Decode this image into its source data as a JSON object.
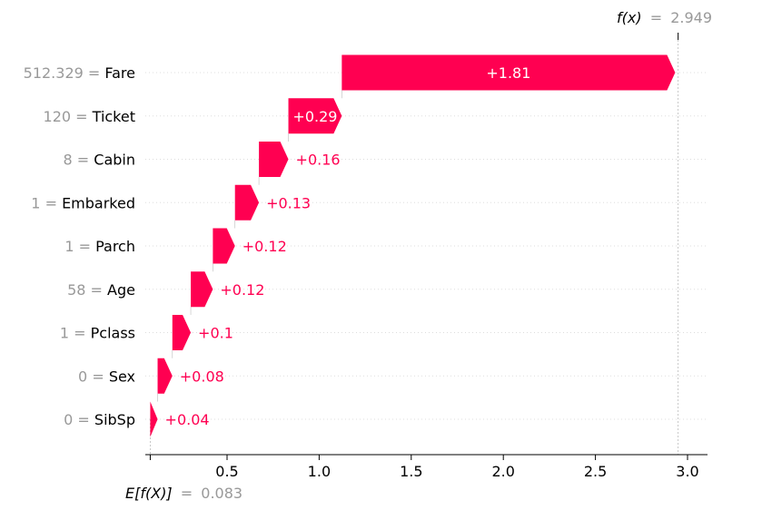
{
  "chart_data": {
    "type": "waterfall",
    "base_value": 0.083,
    "output_value": 2.949,
    "base_label": {
      "expr": "E[f(X)]",
      "eq": "=",
      "value": "0.083"
    },
    "output_label": {
      "expr": "f(x)",
      "eq": "=",
      "value": "2.949"
    },
    "features": [
      {
        "value": "512.329",
        "eq": "=",
        "name": "Fare",
        "contribution": 1.81,
        "label": "+1.81"
      },
      {
        "value": "120",
        "eq": "=",
        "name": "Ticket",
        "contribution": 0.29,
        "label": "+0.29"
      },
      {
        "value": "8",
        "eq": "=",
        "name": "Cabin",
        "contribution": 0.16,
        "label": "+0.16"
      },
      {
        "value": "1",
        "eq": "=",
        "name": "Embarked",
        "contribution": 0.13,
        "label": "+0.13"
      },
      {
        "value": "1",
        "eq": "=",
        "name": "Parch",
        "contribution": 0.12,
        "label": "+0.12"
      },
      {
        "value": "58",
        "eq": "=",
        "name": "Age",
        "contribution": 0.12,
        "label": "+0.12"
      },
      {
        "value": "1",
        "eq": "=",
        "name": "Pclass",
        "contribution": 0.1,
        "label": "+0.1"
      },
      {
        "value": "0",
        "eq": "=",
        "name": "Sex",
        "contribution": 0.08,
        "label": "+0.08"
      },
      {
        "value": "0",
        "eq": "=",
        "name": "SibSp",
        "contribution": 0.04,
        "label": "+0.04"
      }
    ],
    "x_ticks": [
      {
        "value": 0.5,
        "label": "0.5"
      },
      {
        "value": 1.0,
        "label": "1.0"
      },
      {
        "value": 1.5,
        "label": "1.5"
      },
      {
        "value": 2.0,
        "label": "2.0"
      },
      {
        "value": 2.5,
        "label": "2.5"
      },
      {
        "value": 3.0,
        "label": "3.0"
      }
    ],
    "xlim": [
      0.08,
      3.12
    ],
    "colors": {
      "positive": "#ff0051",
      "value_text": "#999999",
      "grid": "#dddddd",
      "axis": "#000000"
    }
  }
}
